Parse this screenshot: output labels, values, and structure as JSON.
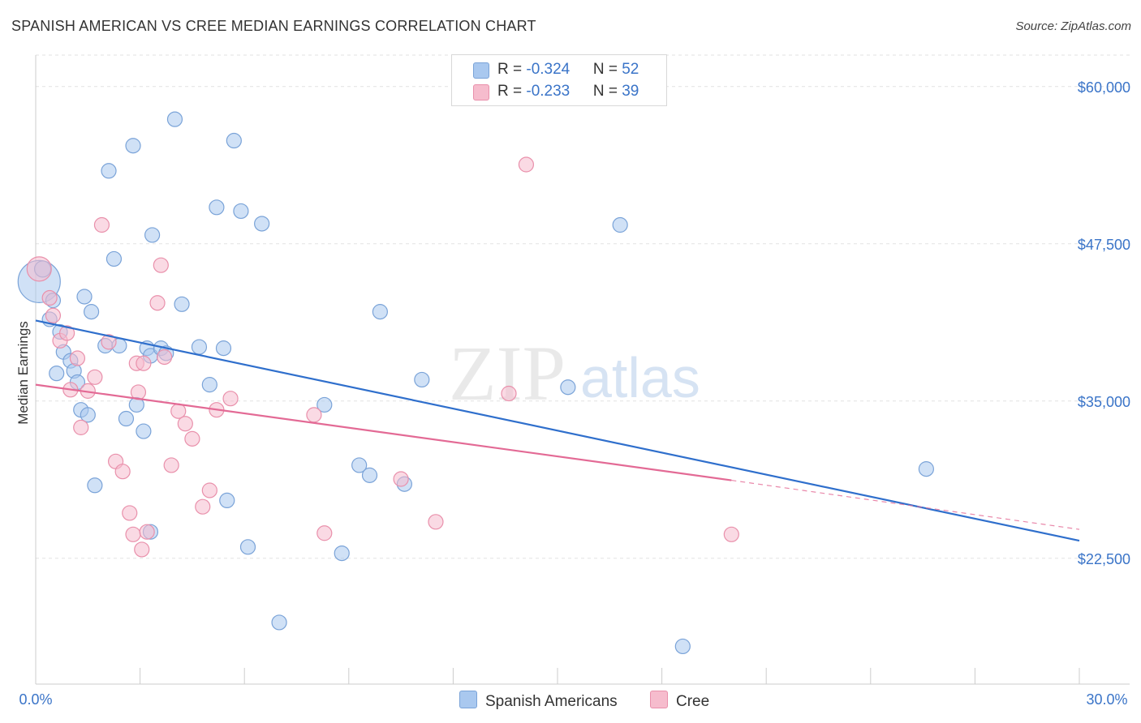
{
  "title": "SPANISH AMERICAN VS CREE MEDIAN EARNINGS CORRELATION CHART",
  "source": "Source: ZipAtlas.com",
  "watermark": {
    "zip": "ZIP",
    "atlas": "atlas"
  },
  "legend": {
    "rows": [
      {
        "r_label": "R = ",
        "r_value": "-0.324",
        "n_label": "N = ",
        "n_value": "52"
      },
      {
        "r_label": "R = ",
        "r_value": "-0.233",
        "n_label": "N = ",
        "n_value": "39"
      }
    ]
  },
  "colors": {
    "blue_fill": "#a9c8ef",
    "blue_stroke": "#7aa3d8",
    "blue_line": "#2f6fcc",
    "pink_fill": "#f6bccd",
    "pink_stroke": "#e990ab",
    "pink_line": "#e36a95",
    "axis_label": "#3a74c8",
    "grid": "#e2e2e2"
  },
  "chart_data": {
    "type": "scatter",
    "title": "SPANISH AMERICAN VS CREE MEDIAN EARNINGS CORRELATION CHART",
    "xlabel": "",
    "ylabel": "Median Earnings",
    "xlim": [
      0,
      30
    ],
    "ylim": [
      12500,
      62500
    ],
    "x_tick_labels": [
      "0.0%",
      "30.0%"
    ],
    "y_ticks": [
      22500,
      35000,
      47500,
      60000
    ],
    "y_tick_labels": [
      "$22,500",
      "$35,000",
      "$47,500",
      "$60,000"
    ],
    "grid": true,
    "legend_position": "bottom",
    "series": [
      {
        "name": "Spanish Americans",
        "color": "#a9c8ef",
        "points": [
          [
            0.1,
            44500,
            26
          ],
          [
            0.2,
            45500,
            10
          ],
          [
            0.4,
            41500,
            9
          ],
          [
            0.5,
            43000,
            9
          ],
          [
            0.6,
            37200,
            9
          ],
          [
            0.7,
            40500,
            9
          ],
          [
            0.8,
            38900,
            9
          ],
          [
            1.0,
            38200,
            9
          ],
          [
            1.1,
            37400,
            9
          ],
          [
            1.2,
            36500,
            9
          ],
          [
            1.3,
            34300,
            9
          ],
          [
            1.4,
            43300,
            9
          ],
          [
            1.5,
            33900,
            9
          ],
          [
            1.6,
            42100,
            9
          ],
          [
            1.7,
            28300,
            9
          ],
          [
            2.0,
            39400,
            9
          ],
          [
            2.1,
            53300,
            9
          ],
          [
            2.25,
            46300,
            9
          ],
          [
            2.4,
            39400,
            9
          ],
          [
            2.6,
            33600,
            9
          ],
          [
            2.8,
            55300,
            9
          ],
          [
            2.9,
            34700,
            9
          ],
          [
            3.1,
            32600,
            9
          ],
          [
            3.2,
            39200,
            9
          ],
          [
            3.3,
            38600,
            9
          ],
          [
            3.3,
            24600,
            9
          ],
          [
            3.35,
            48200,
            9
          ],
          [
            3.6,
            39200,
            9
          ],
          [
            3.75,
            38800,
            9
          ],
          [
            4.0,
            57400,
            9
          ],
          [
            4.2,
            42700,
            9
          ],
          [
            4.7,
            39300,
            9
          ],
          [
            5.0,
            36300,
            9
          ],
          [
            5.2,
            50400,
            9
          ],
          [
            5.4,
            39200,
            9
          ],
          [
            5.5,
            27100,
            9
          ],
          [
            5.7,
            55700,
            9
          ],
          [
            5.9,
            50100,
            9
          ],
          [
            6.1,
            23400,
            9
          ],
          [
            6.5,
            49100,
            9
          ],
          [
            7.0,
            17400,
            9
          ],
          [
            8.3,
            34700,
            9
          ],
          [
            8.8,
            22900,
            9
          ],
          [
            9.3,
            29900,
            9
          ],
          [
            9.6,
            29100,
            9
          ],
          [
            9.9,
            42100,
            9
          ],
          [
            10.6,
            28400,
            9
          ],
          [
            11.1,
            36700,
            9
          ],
          [
            15.3,
            36100,
            9
          ],
          [
            16.8,
            49000,
            9
          ],
          [
            18.6,
            15500,
            9
          ],
          [
            25.6,
            29600,
            9
          ]
        ],
        "trend": {
          "x": [
            0.0,
            30.0
          ],
          "y": [
            41400,
            23900
          ]
        }
      },
      {
        "name": "Cree",
        "color": "#f6bccd",
        "points": [
          [
            0.1,
            45500,
            15
          ],
          [
            0.4,
            43200,
            9
          ],
          [
            0.5,
            41800,
            9
          ],
          [
            0.7,
            39800,
            9
          ],
          [
            0.9,
            40400,
            9
          ],
          [
            1.0,
            35900,
            9
          ],
          [
            1.2,
            38400,
            9
          ],
          [
            1.3,
            32900,
            9
          ],
          [
            1.5,
            35800,
            9
          ],
          [
            1.7,
            36900,
            9
          ],
          [
            1.9,
            49000,
            9
          ],
          [
            2.1,
            39700,
            9
          ],
          [
            2.3,
            30200,
            9
          ],
          [
            2.5,
            29400,
            9
          ],
          [
            2.7,
            26100,
            9
          ],
          [
            2.8,
            24400,
            9
          ],
          [
            2.9,
            38000,
            9
          ],
          [
            2.95,
            35700,
            9
          ],
          [
            3.05,
            23200,
            9
          ],
          [
            3.1,
            38000,
            9
          ],
          [
            3.2,
            24600,
            9
          ],
          [
            3.5,
            42800,
            9
          ],
          [
            3.6,
            45800,
            9
          ],
          [
            3.7,
            38500,
            9
          ],
          [
            3.9,
            29900,
            9
          ],
          [
            4.1,
            34200,
            9
          ],
          [
            4.3,
            33200,
            9
          ],
          [
            4.5,
            32000,
            9
          ],
          [
            4.8,
            26600,
            9
          ],
          [
            5.0,
            27900,
            9
          ],
          [
            5.2,
            34300,
            9
          ],
          [
            5.6,
            35200,
            9
          ],
          [
            8.0,
            33900,
            9
          ],
          [
            8.3,
            24500,
            9
          ],
          [
            10.5,
            28800,
            9
          ],
          [
            11.5,
            25400,
            9
          ],
          [
            13.6,
            35600,
            9
          ],
          [
            14.1,
            53800,
            9
          ],
          [
            20.0,
            24400,
            9
          ]
        ],
        "trend": {
          "x": [
            0.0,
            20.0
          ],
          "y": [
            36300,
            28700
          ]
        },
        "trend_extension": {
          "x": [
            20.0,
            30.0
          ],
          "y": [
            28700,
            24800
          ]
        }
      }
    ]
  }
}
